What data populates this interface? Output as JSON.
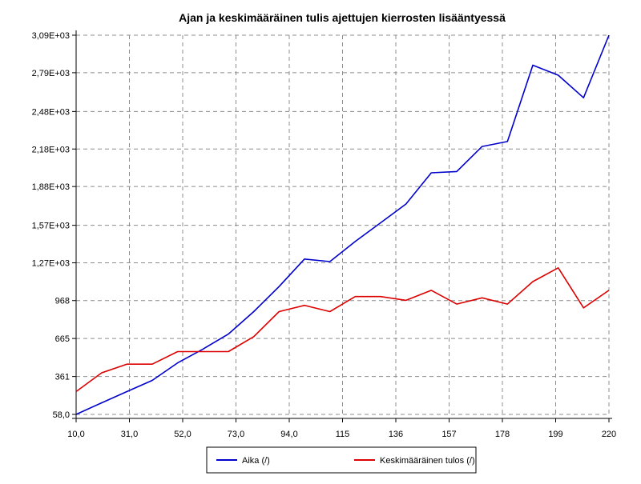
{
  "chart_data": {
    "type": "line",
    "title": "Ajan ja keskimääräinen tulis ajettujen kierrosten lisääntyessä",
    "xlabel": "",
    "ylabel": "",
    "xlim": [
      10,
      220
    ],
    "ylim": [
      58,
      3090
    ],
    "grid": true,
    "legend_position": "bottom",
    "x_ticks": [
      10,
      31,
      52,
      73,
      94,
      115,
      136,
      157,
      178,
      199,
      220
    ],
    "x_tick_labels": [
      "10,0",
      "31,0",
      "52,0",
      "73,0",
      "94,0",
      "115",
      "136",
      "157",
      "178",
      "199",
      "220"
    ],
    "y_ticks": [
      58,
      361,
      665,
      968,
      1270,
      1570,
      1880,
      2180,
      2480,
      2790,
      3090
    ],
    "y_tick_labels": [
      "58,0",
      "361",
      "665",
      "968",
      "1,27E+03",
      "1,57E+03",
      "1,88E+03",
      "2,18E+03",
      "2,48E+03",
      "2,79E+03",
      "3,09E+03"
    ],
    "x": [
      10,
      20,
      30,
      40,
      50,
      60,
      70,
      80,
      90,
      100,
      110,
      120,
      130,
      140,
      150,
      160,
      170,
      180,
      190,
      200,
      210,
      220
    ],
    "series": [
      {
        "name": "Aika (/)",
        "color": "#0000cc",
        "values": [
          58,
          150,
          240,
          330,
          470,
          580,
          700,
          880,
          1080,
          1300,
          1280,
          1440,
          1590,
          1740,
          1990,
          2000,
          2200,
          2240,
          2850,
          2770,
          2590,
          3090
        ]
      },
      {
        "name": "Keskimääräinen tulos (/)",
        "color": "#dd0000",
        "values": [
          240,
          390,
          460,
          460,
          560,
          560,
          560,
          680,
          880,
          930,
          880,
          1000,
          1000,
          970,
          1050,
          940,
          990,
          940,
          1120,
          1230,
          910,
          1050
        ]
      }
    ]
  }
}
